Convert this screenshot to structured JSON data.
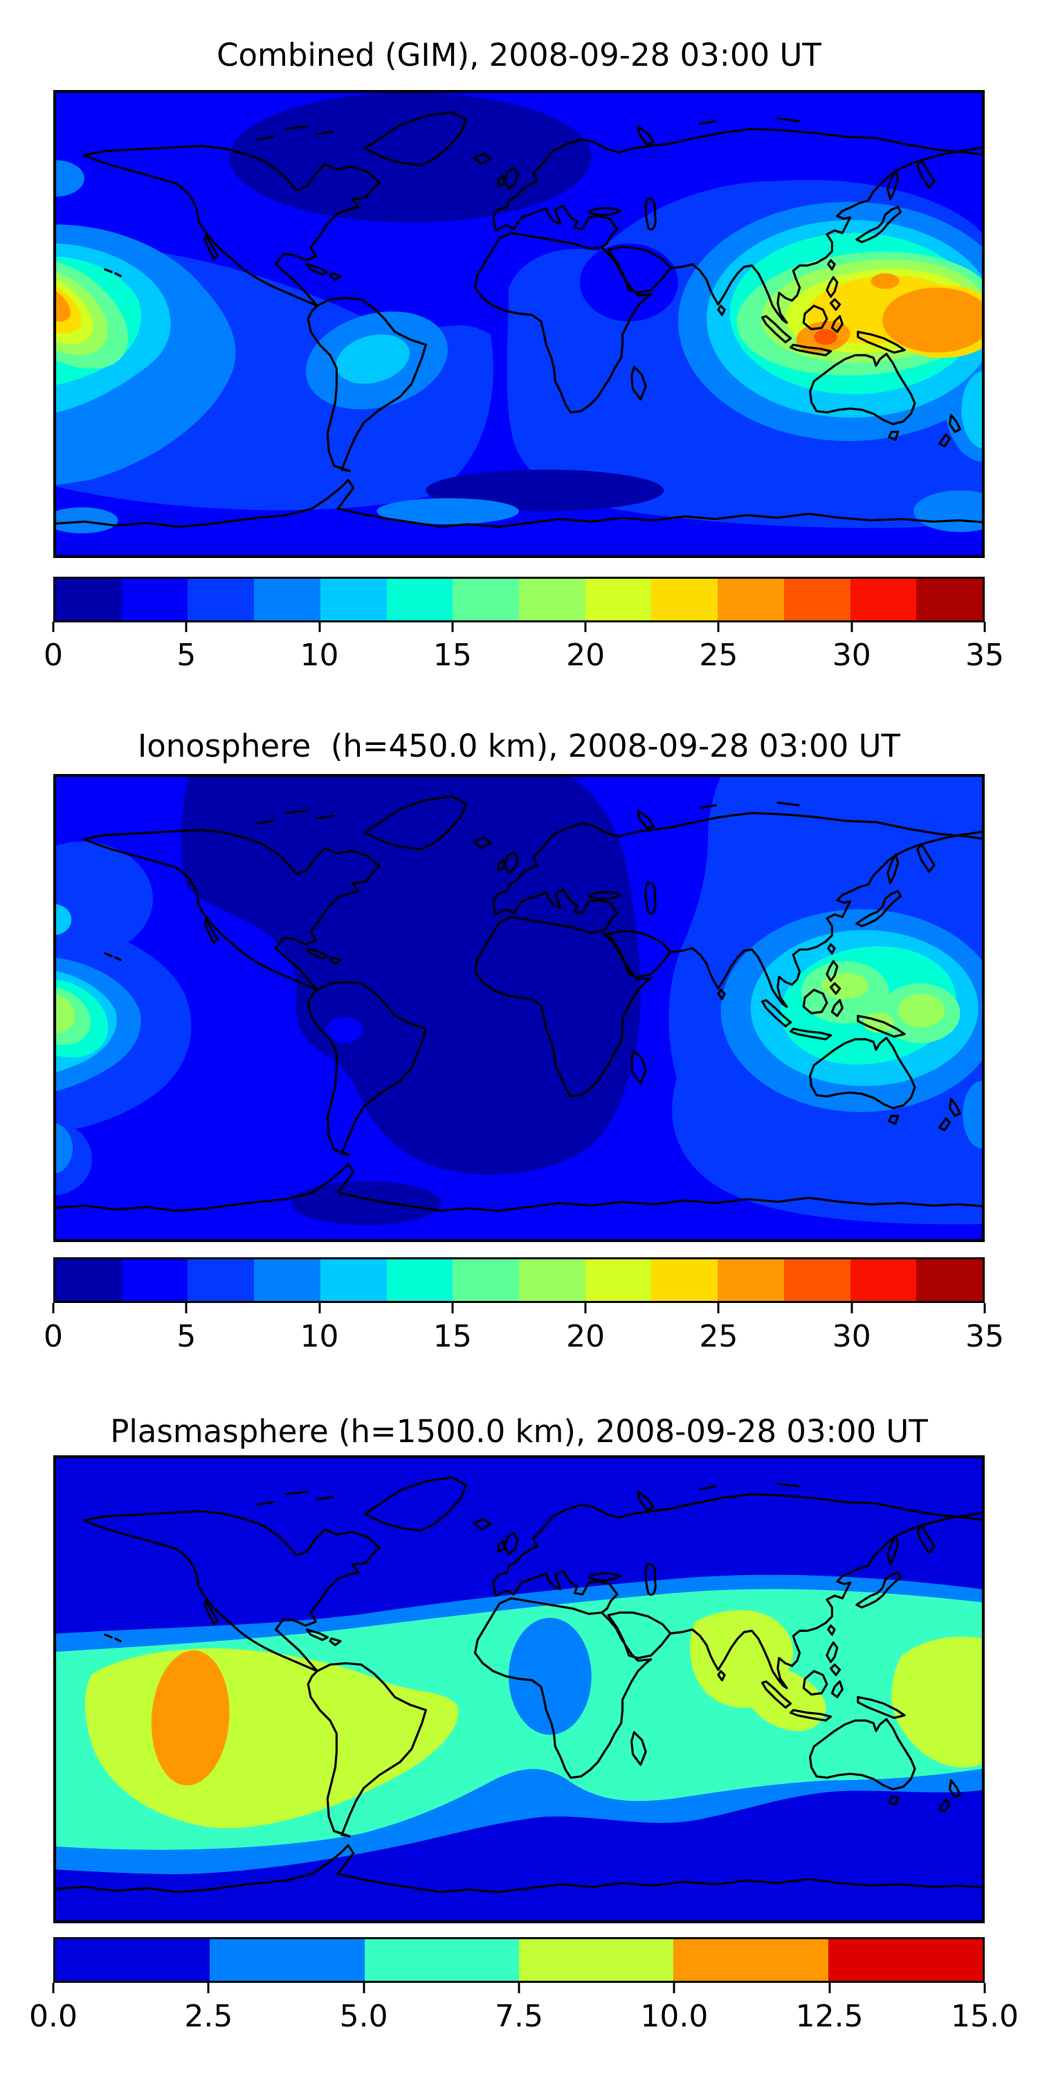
{
  "figure": {
    "background": "#ffffff",
    "panels": [
      {
        "id": "combined",
        "title": "Combined (GIM), 2008-09-28 03:00 UT",
        "colorbar": {
          "orientation": "horizontal",
          "vmin": 0,
          "vmax": 35,
          "tick_labels": [
            "0",
            "5",
            "10",
            "15",
            "20",
            "25",
            "30",
            "35"
          ],
          "colors": [
            "#0000AA",
            "#0000FB",
            "#0338FF",
            "#0080FF",
            "#00C9FF",
            "#00FFD4",
            "#5DFF9A",
            "#9AFF5D",
            "#D4FF23",
            "#FFDC00",
            "#FF9800",
            "#FF5500",
            "#FB1100",
            "#AA0000"
          ]
        }
      },
      {
        "id": "ionosphere",
        "title": "Ionosphere  (h=450.0 km), 2008-09-28 03:00 UT",
        "colorbar": {
          "orientation": "horizontal",
          "vmin": 0,
          "vmax": 35,
          "tick_labels": [
            "0",
            "5",
            "10",
            "15",
            "20",
            "25",
            "30",
            "35"
          ],
          "colors": [
            "#0000AA",
            "#0000FB",
            "#0338FF",
            "#0080FF",
            "#00C9FF",
            "#00FFD4",
            "#5DFF9A",
            "#9AFF5D",
            "#D4FF23",
            "#FFDC00",
            "#FF9800",
            "#FF5500",
            "#FB1100",
            "#AA0000"
          ]
        }
      },
      {
        "id": "plasmasphere",
        "title": "Plasmasphere (h=1500.0 km), 2008-09-28 03:00 UT",
        "colorbar": {
          "orientation": "horizontal",
          "vmin": 0,
          "vmax": 15,
          "tick_labels": [
            "0.0",
            "2.5",
            "5.0",
            "7.5",
            "10.0",
            "12.5",
            "15.0"
          ],
          "colors": [
            "#0000DF",
            "#0080FF",
            "#37FFC2",
            "#C2FF37",
            "#FF9800",
            "#DF0000"
          ]
        }
      }
    ]
  },
  "chart_data": [
    {
      "type": "heatmap",
      "subtype": "filled-contour-world-map",
      "title": "Combined (GIM), 2008-09-28 03:00 UT",
      "projection": "equirectangular",
      "lon_range": [
        -180,
        180
      ],
      "lat_range": [
        -90,
        90
      ],
      "colormap": "jet",
      "levels": [
        0,
        2.5,
        5,
        7.5,
        10,
        12.5,
        15,
        17.5,
        20,
        22.5,
        25,
        27.5,
        30,
        32.5,
        35
      ],
      "colorbar_ticks": [
        0,
        5,
        10,
        15,
        20,
        25,
        30,
        35
      ],
      "legend_position": "horizontal colorbar below map",
      "grid": false,
      "features": [
        {
          "kind": "max",
          "region": "Maritime Continent / western Pacific (Java-Borneo-New Guinea)",
          "lon": 115,
          "lat": -7,
          "value_range": "27.5-32.5"
        },
        {
          "kind": "max",
          "region": "central Pacific near dateline (wraps at map edges)",
          "lon": -178,
          "lat": 10,
          "value_range": "25-30"
        },
        {
          "kind": "ridge",
          "region": "equatorial band from India to 180E",
          "lon": 110,
          "lat": 5,
          "value_range": "15-25"
        },
        {
          "kind": "local-high",
          "region": "equatorial South America (Amazon/Peru)",
          "lon": -55,
          "lat": -13,
          "value_range": "10-12.5"
        },
        {
          "kind": "min",
          "region": "Arctic Canada / Greenland",
          "lon": -90,
          "lat": 64,
          "value_range": "0-2.5"
        },
        {
          "kind": "min",
          "region": "Southern Ocean south of Africa",
          "lon": 10,
          "lat": -65,
          "value_range": "0-2.5"
        }
      ]
    },
    {
      "type": "heatmap",
      "subtype": "filled-contour-world-map",
      "title": "Ionosphere  (h=450.0 km), 2008-09-28 03:00 UT",
      "projection": "equirectangular",
      "lon_range": [
        -180,
        180
      ],
      "lat_range": [
        -90,
        90
      ],
      "colormap": "jet",
      "levels": [
        0,
        2.5,
        5,
        7.5,
        10,
        12.5,
        15,
        17.5,
        20,
        22.5,
        25,
        27.5,
        30,
        32.5,
        35
      ],
      "colorbar_ticks": [
        0,
        5,
        10,
        15,
        20,
        25,
        30,
        35
      ],
      "legend_position": "horizontal colorbar below map",
      "grid": false,
      "features": [
        {
          "kind": "max",
          "region": "western Pacific (Philippine Sea / New Guinea)",
          "lon": 145,
          "lat": 5,
          "value_range": "17.5-20"
        },
        {
          "kind": "max",
          "region": "central Pacific near dateline (wraps at map edges)",
          "lon": -179,
          "lat": 2,
          "value_range": "17.5-20"
        },
        {
          "kind": "min",
          "region": "broad minimum over Americas, Atlantic, Africa and Europe",
          "lon": -30,
          "lat": 20,
          "value_range": "0-2.5"
        },
        {
          "kind": "min",
          "region": "Antarctic coast south of Indian Ocean",
          "lon": 15,
          "lat": -75,
          "value_range": "0-2.5"
        }
      ]
    },
    {
      "type": "heatmap",
      "subtype": "filled-contour-world-map",
      "title": "Plasmasphere (h=1500.0 km), 2008-09-28 03:00 UT",
      "projection": "equirectangular",
      "lon_range": [
        -180,
        180
      ],
      "lat_range": [
        -90,
        90
      ],
      "colormap": "jet",
      "levels": [
        0,
        2.5,
        5,
        7.5,
        10,
        12.5,
        15
      ],
      "colorbar_ticks": [
        0.0,
        2.5,
        5.0,
        7.5,
        10.0,
        12.5,
        15.0
      ],
      "legend_position": "horizontal colorbar below map",
      "grid": false,
      "features": [
        {
          "kind": "ridge",
          "region": "equatorial/low-latitude band between about -45 and +35 latitude",
          "lon": 0,
          "lat": -5,
          "value_range": "5-10"
        },
        {
          "kind": "max",
          "region": "eastern Pacific west of South America (tall oval)",
          "lon": -125,
          "lat": -12,
          "value_range": "10-12.5"
        },
        {
          "kind": "local-high",
          "region": "India / Indonesia",
          "lon": 85,
          "lat": 5,
          "value_range": "7.5-10"
        },
        {
          "kind": "local-high",
          "region": "far western Pacific at right map edge",
          "lon": 172,
          "lat": -8,
          "value_range": "7.5-10"
        },
        {
          "kind": "local-min",
          "region": "hole over north-central Africa",
          "lon": 12,
          "lat": 5,
          "value_range": "2.5-5"
        },
        {
          "kind": "min",
          "region": "high latitudes / polar caps",
          "lon": 0,
          "lat": 70,
          "value_range": "0-2.5"
        }
      ]
    }
  ]
}
